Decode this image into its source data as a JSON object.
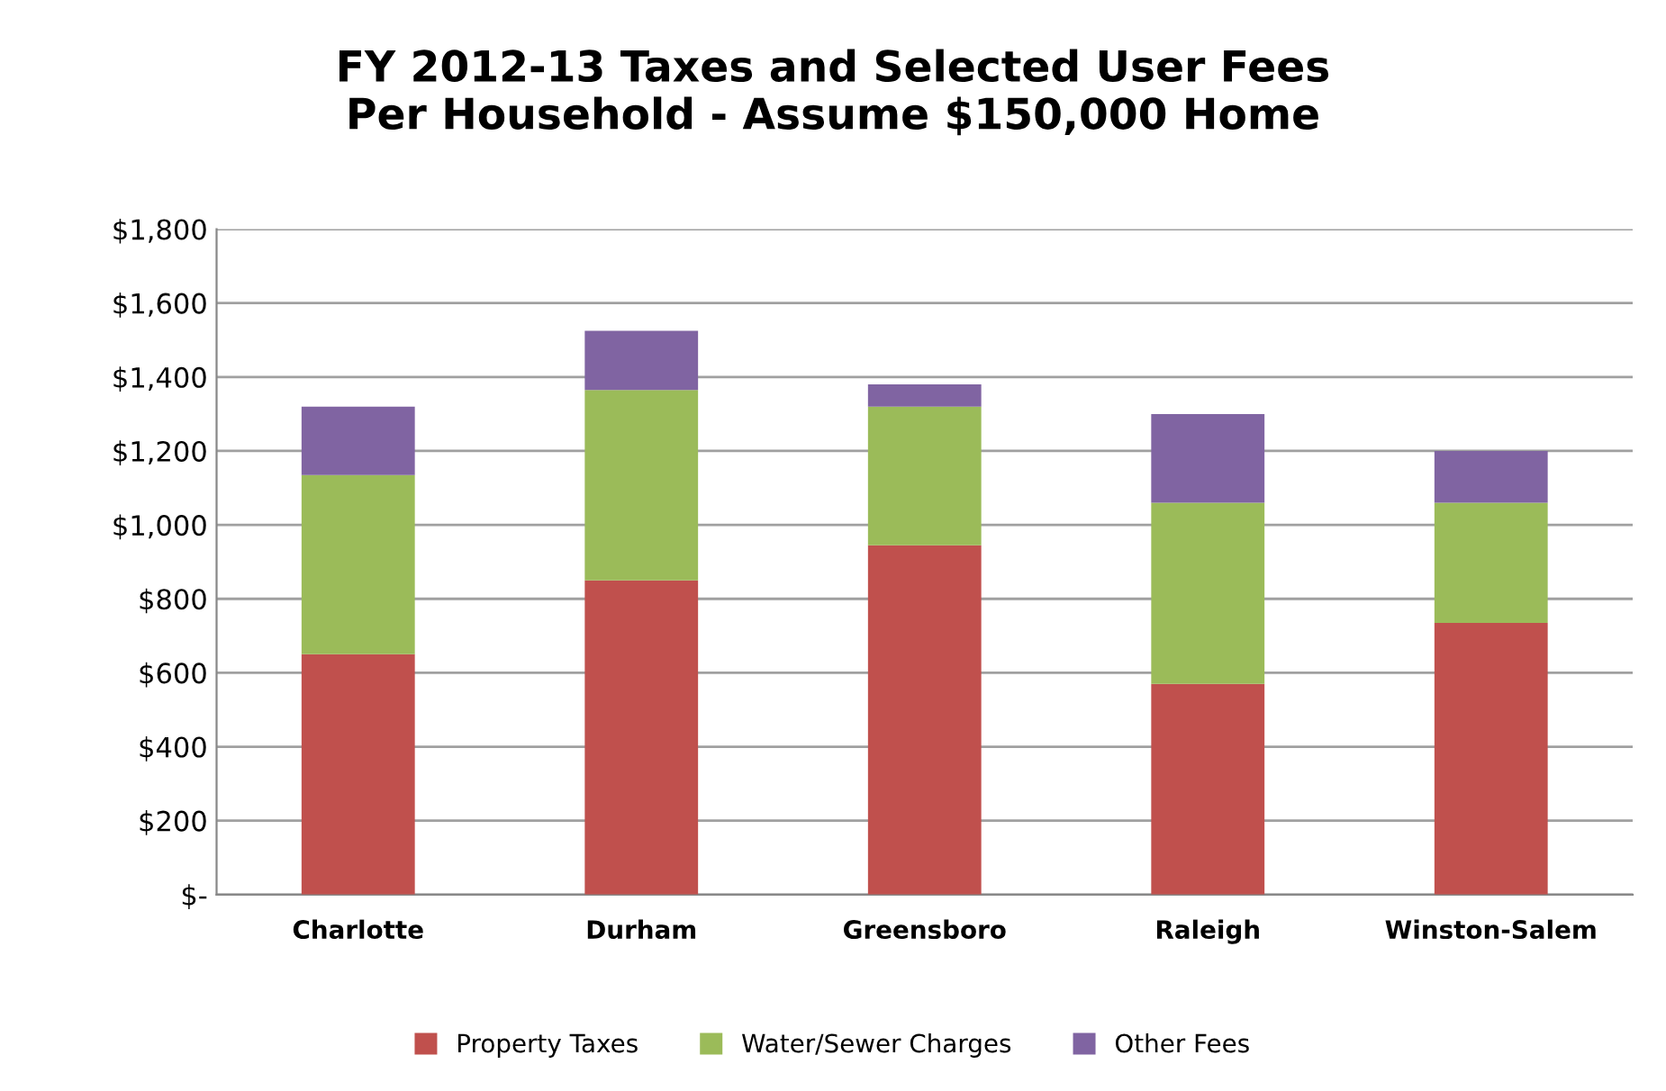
{
  "chart_data": {
    "type": "bar",
    "title": "FY 2012-13 Taxes and Selected User Fees\nPer Household - Assume $150,000 Home",
    "categories": [
      "Charlotte",
      "Durham",
      "Greensboro",
      "Raleigh",
      "Winston-Salem"
    ],
    "stacked": true,
    "series": [
      {
        "name": "Property Taxes",
        "color": "#c0504d",
        "values": [
          650,
          850,
          945,
          570,
          735
        ]
      },
      {
        "name": "Water/Sewer Charges",
        "color": "#9bbb59",
        "values": [
          485,
          515,
          375,
          490,
          325
        ]
      },
      {
        "name": "Other Fees",
        "color": "#8064a2",
        "values": [
          185,
          160,
          60,
          240,
          140
        ]
      }
    ],
    "ylim": [
      0,
      1800
    ],
    "yticks": [
      {
        "value": 0,
        "label": "$-"
      },
      {
        "value": 200,
        "label": "$200"
      },
      {
        "value": 400,
        "label": "$400"
      },
      {
        "value": 600,
        "label": "$600"
      },
      {
        "value": 800,
        "label": "$800"
      },
      {
        "value": 1000,
        "label": "$1,000"
      },
      {
        "value": 1200,
        "label": "$1,200"
      },
      {
        "value": 1400,
        "label": "$1,400"
      },
      {
        "value": 1600,
        "label": "$1,600"
      },
      {
        "value": 1800,
        "label": "$1,800"
      }
    ],
    "grid": "y",
    "legend": "bottom"
  }
}
